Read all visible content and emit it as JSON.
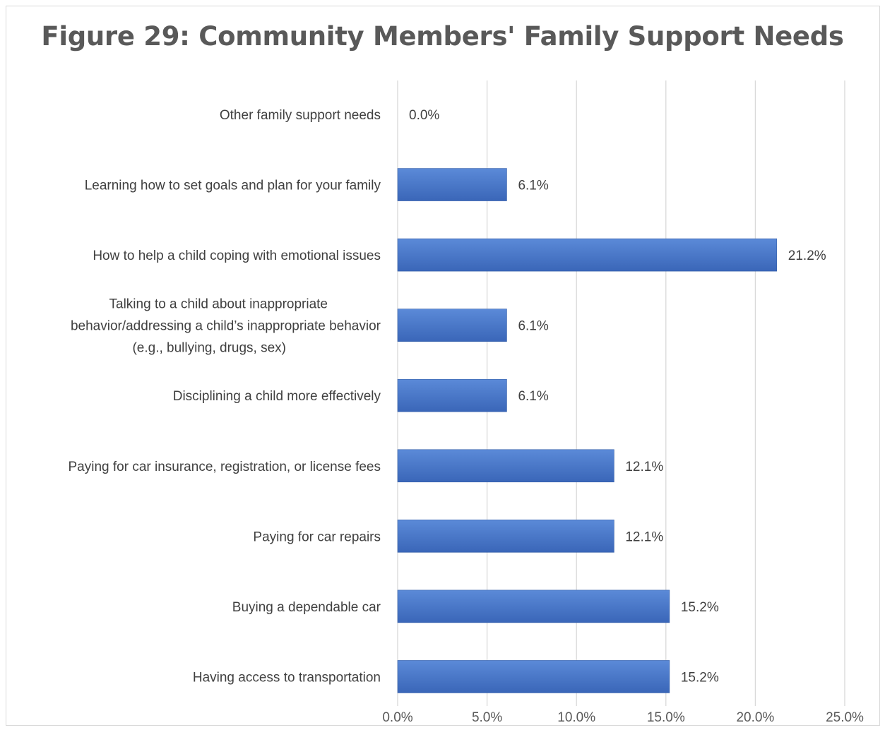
{
  "chart_data": {
    "type": "bar",
    "orientation": "horizontal",
    "title": "Figure 29: Community Members' Family Support Needs",
    "categories": [
      "Other family support needs",
      "Learning how to set goals and plan for your family",
      "How to help a child coping with emotional issues",
      [
        "Talking to a child about inappropriate",
        "behavior/addressing a child’s inappropriate behavior",
        "(e.g., bullying, drugs, sex)"
      ],
      "Disciplining a child more effectively",
      "Paying for car insurance, registration, or license fees",
      "Paying for car repairs",
      "Buying a dependable car",
      "Having access to transportation"
    ],
    "values": [
      0.0,
      6.1,
      21.2,
      6.1,
      6.1,
      12.1,
      12.1,
      15.2,
      15.2
    ],
    "value_labels": [
      "0.0%",
      "6.1%",
      "21.2%",
      "6.1%",
      "6.1%",
      "12.1%",
      "12.1%",
      "15.2%",
      "15.2%"
    ],
    "xlim": [
      0,
      25
    ],
    "xticks": [
      0,
      5,
      10,
      15,
      20,
      25
    ],
    "xtick_labels": [
      "0.0%",
      "5.0%",
      "10.0%",
      "15.0%",
      "20.0%",
      "25.0%"
    ],
    "grid": "vertical",
    "bar_color": "#4472c4",
    "legend": "none"
  }
}
